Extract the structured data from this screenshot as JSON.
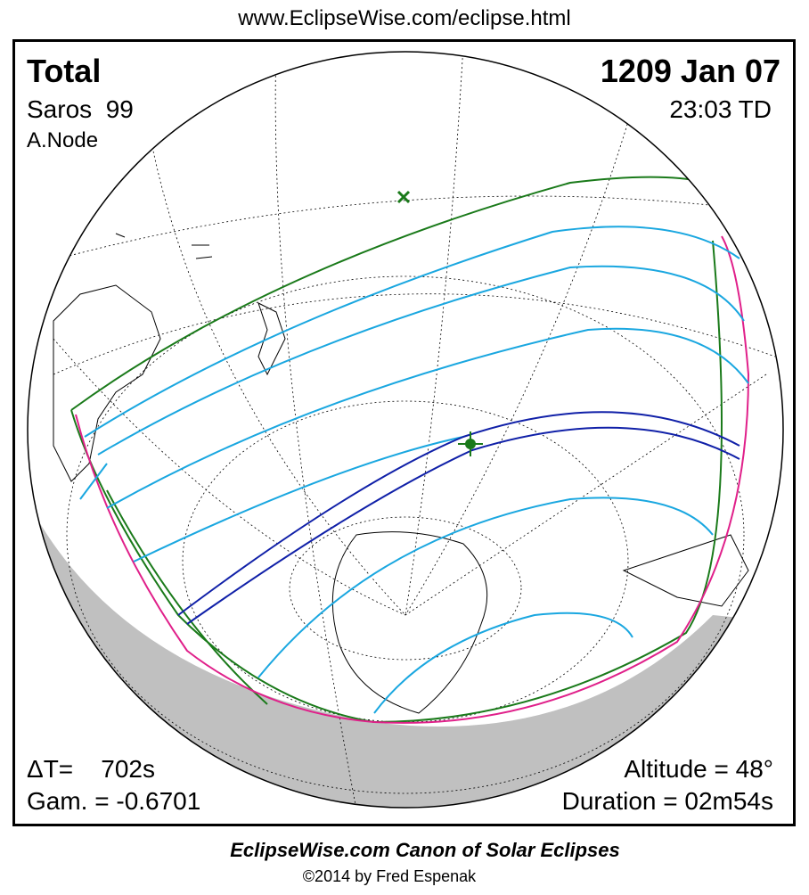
{
  "header": {
    "url": "www.EclipseWise.com/eclipse.html"
  },
  "panel": {
    "eclipse_type": "Total",
    "date": "1209 Jan 07",
    "saros": "Saros  99",
    "time": "23:03 TD",
    "node": "A.Node",
    "delta_t": "ΔT=    702s",
    "gamma": "Gam. = -0.6701",
    "altitude": "Altitude = 48°",
    "duration": "Duration = 02m54s"
  },
  "footer": {
    "title": "EclipseWise.com Canon of Solar Eclipses",
    "copyright": "©2014 by Fred Espenak"
  }
}
